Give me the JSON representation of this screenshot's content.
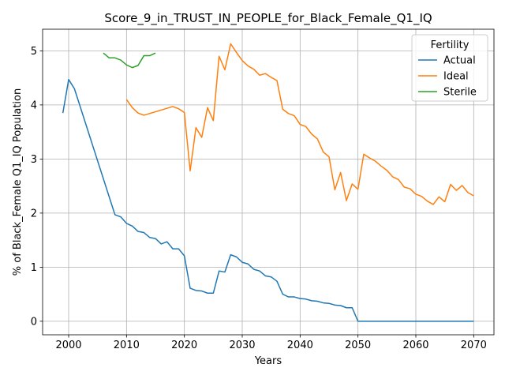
{
  "chart_data": {
    "type": "line",
    "title": "Score_9_in_TRUST_IN_PEOPLE_for_Black_Female_Q1_IQ",
    "xlabel": "Years",
    "ylabel": "% of Black_Female Q1_IQ Population",
    "xlim": [
      1995.5,
      2073.5
    ],
    "ylim": [
      -0.25,
      5.4
    ],
    "xticks": [
      2000,
      2010,
      2020,
      2030,
      2040,
      2050,
      2060,
      2070
    ],
    "yticks": [
      0,
      1,
      2,
      3,
      4,
      5
    ],
    "grid": true,
    "legend": {
      "title": "Fertility",
      "position": "top-right"
    },
    "series": [
      {
        "name": "Actual",
        "color": "#1f77b4",
        "x": [
          1999,
          2000,
          2001,
          2008,
          2009,
          2010,
          2011,
          2012,
          2013,
          2014,
          2015,
          2016,
          2017,
          2018,
          2019,
          2020,
          2021,
          2022,
          2023,
          2024,
          2025,
          2026,
          2027,
          2028,
          2029,
          2030,
          2031,
          2032,
          2033,
          2034,
          2035,
          2036,
          2037,
          2038,
          2039,
          2040,
          2041,
          2042,
          2043,
          2044,
          2045,
          2046,
          2047,
          2048,
          2049,
          2050,
          2051,
          2052,
          2053,
          2054,
          2055,
          2056,
          2057,
          2058,
          2059,
          2060,
          2061,
          2062,
          2063,
          2064,
          2065,
          2066,
          2067,
          2068,
          2069,
          2070
        ],
        "y": [
          3.85,
          4.47,
          4.3,
          1.97,
          1.93,
          1.81,
          1.76,
          1.66,
          1.64,
          1.55,
          1.53,
          1.43,
          1.47,
          1.34,
          1.34,
          1.21,
          0.61,
          0.57,
          0.56,
          0.52,
          0.52,
          0.93,
          0.91,
          1.23,
          1.19,
          1.09,
          1.06,
          0.96,
          0.93,
          0.84,
          0.82,
          0.74,
          0.5,
          0.45,
          0.45,
          0.42,
          0.41,
          0.38,
          0.37,
          0.34,
          0.33,
          0.3,
          0.29,
          0.25,
          0.25,
          0.0,
          0.0,
          0.0,
          0.0,
          0.0,
          0.0,
          0.0,
          0.0,
          0.0,
          0.0,
          0.0,
          0.0,
          0.0,
          0.0,
          0.0,
          0.0,
          0.0,
          0.0,
          0.0,
          0.0,
          0.0
        ]
      },
      {
        "name": "Ideal",
        "color": "#ff7f0e",
        "x": [
          2010,
          2011,
          2012,
          2013,
          2018,
          2019,
          2020,
          2021,
          2022,
          2023,
          2024,
          2025,
          2026,
          2027,
          2028,
          2029,
          2030,
          2031,
          2032,
          2033,
          2034,
          2035,
          2036,
          2037,
          2038,
          2039,
          2040,
          2041,
          2042,
          2043,
          2044,
          2045,
          2046,
          2047,
          2048,
          2049,
          2050,
          2051,
          2052,
          2053,
          2054,
          2055,
          2056,
          2057,
          2058,
          2059,
          2060,
          2061,
          2062,
          2063,
          2064,
          2065,
          2066,
          2067,
          2068,
          2069,
          2070
        ],
        "y": [
          4.1,
          3.95,
          3.85,
          3.81,
          3.97,
          3.93,
          3.86,
          2.78,
          3.58,
          3.4,
          3.95,
          3.71,
          4.9,
          4.65,
          5.13,
          4.97,
          4.82,
          4.72,
          4.66,
          4.55,
          4.58,
          4.51,
          4.45,
          3.92,
          3.84,
          3.8,
          3.64,
          3.6,
          3.46,
          3.37,
          3.13,
          3.04,
          2.43,
          2.75,
          2.23,
          2.54,
          2.44,
          3.09,
          3.02,
          2.96,
          2.87,
          2.79,
          2.67,
          2.62,
          2.48,
          2.45,
          2.35,
          2.31,
          2.22,
          2.16,
          2.3,
          2.21,
          2.53,
          2.42,
          2.51,
          2.38,
          2.32
        ]
      },
      {
        "name": "Sterile",
        "color": "#2ca02c",
        "x": [
          2006,
          2007,
          2008,
          2009,
          2010,
          2011,
          2012,
          2013,
          2014,
          2015
        ],
        "y": [
          4.96,
          4.87,
          4.87,
          4.83,
          4.74,
          4.69,
          4.73,
          4.91,
          4.91,
          4.96
        ]
      }
    ]
  }
}
